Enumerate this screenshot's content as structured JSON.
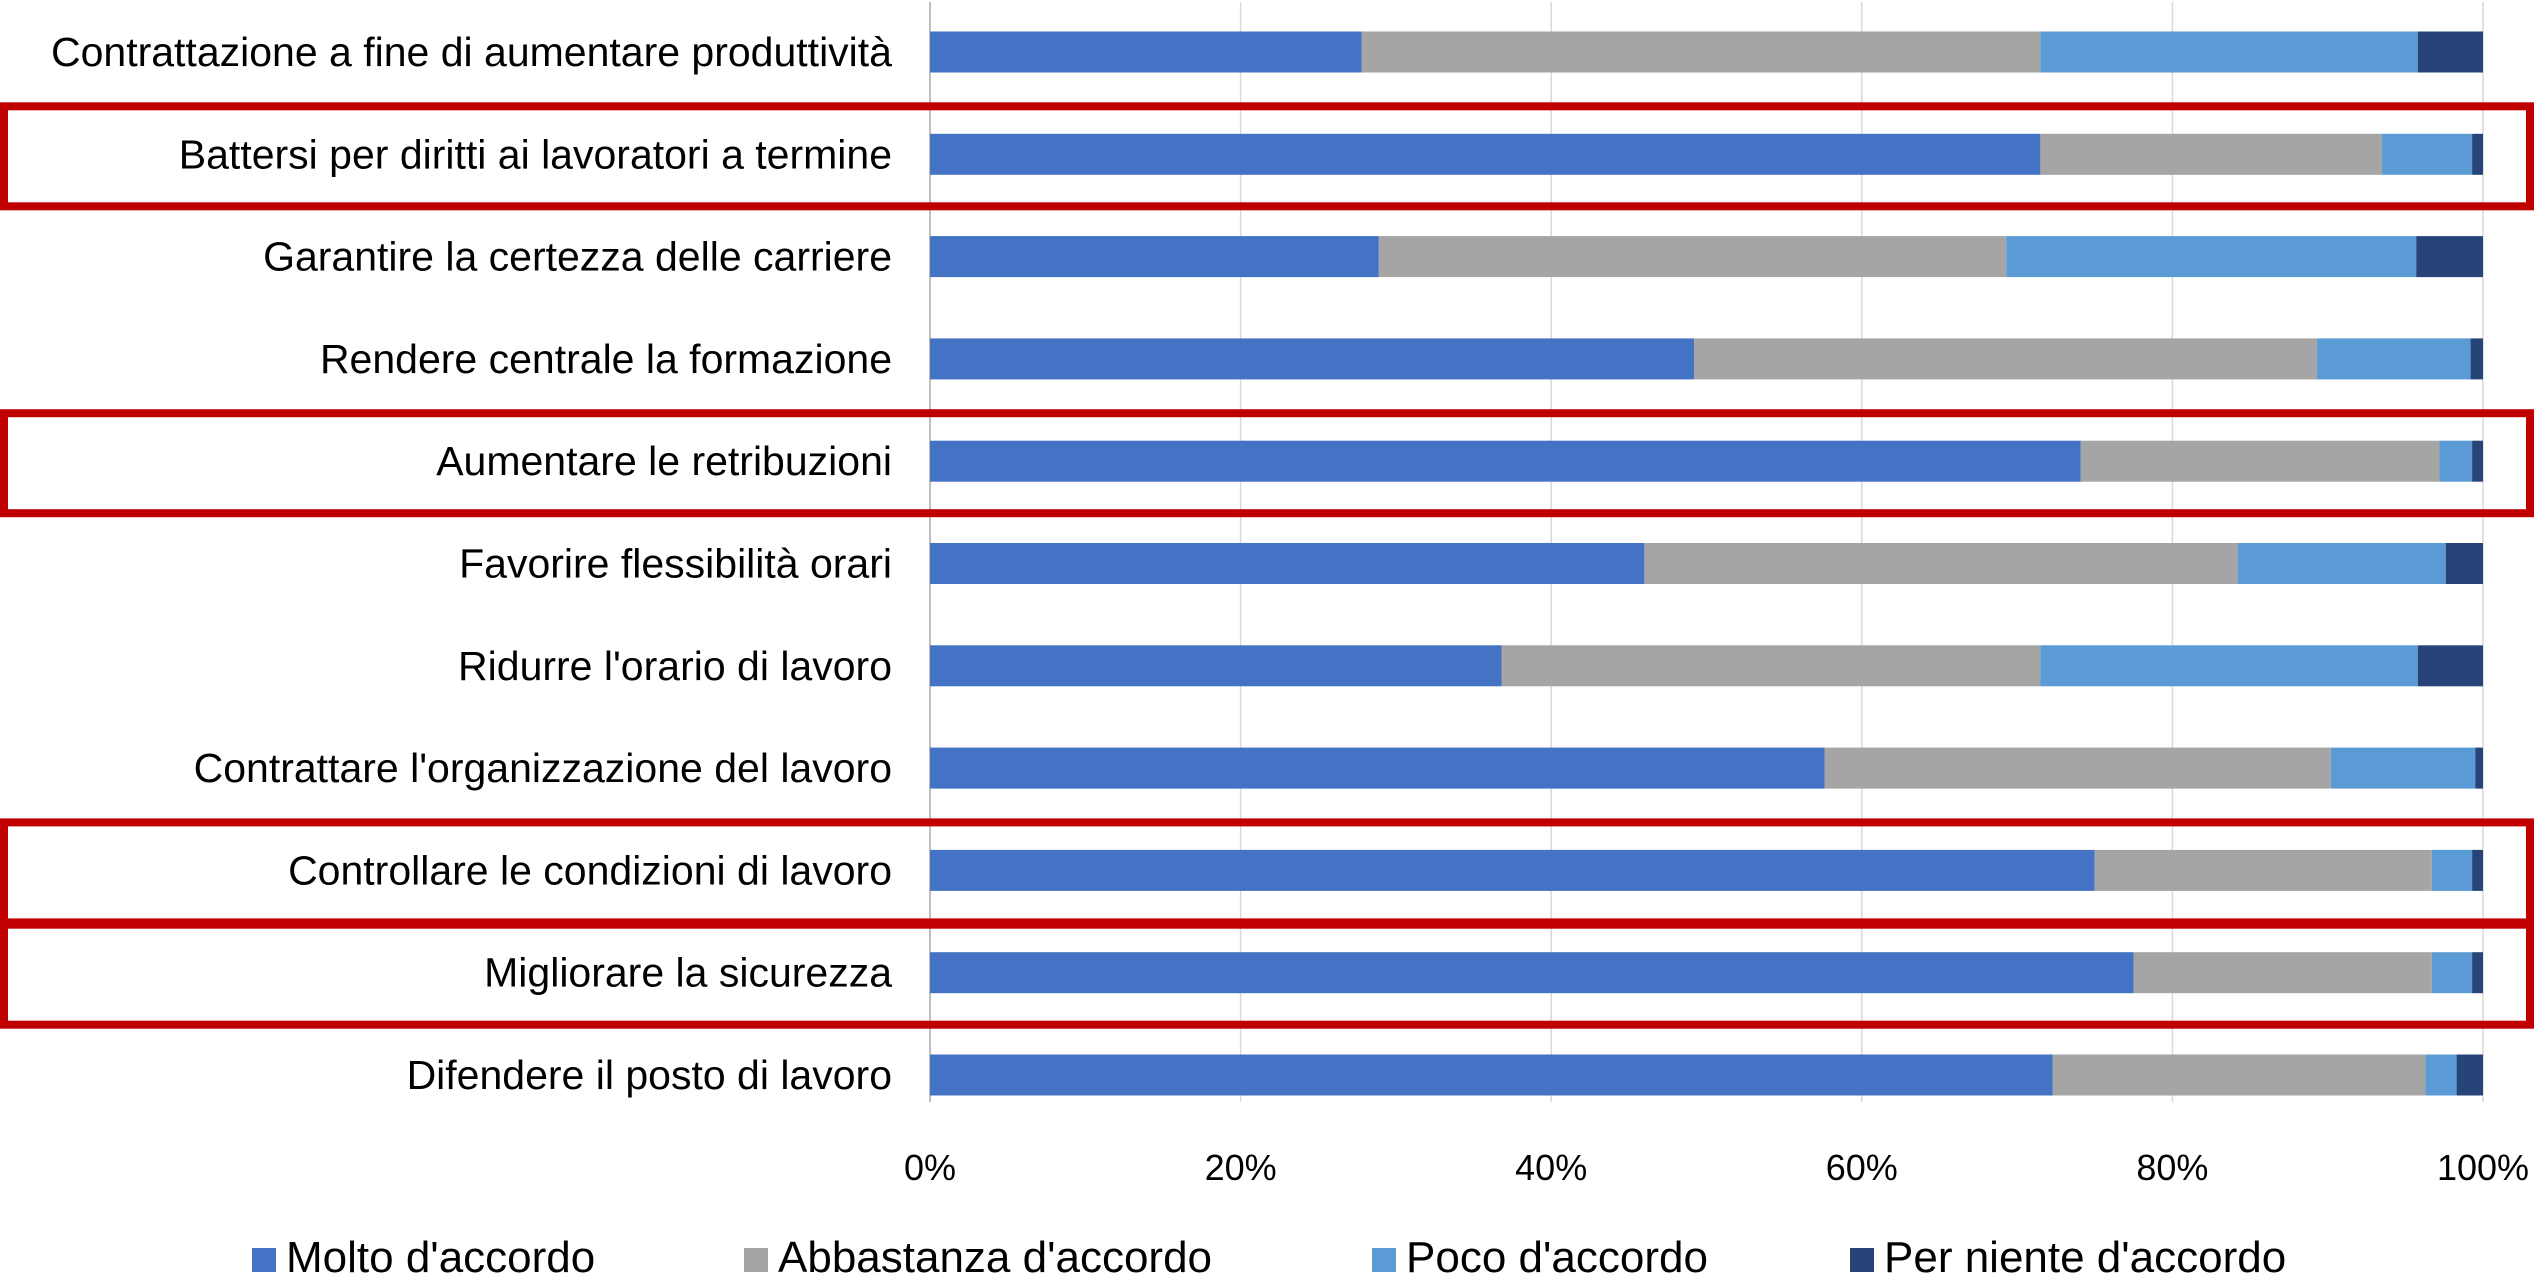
{
  "chart_data": {
    "type": "bar",
    "orientation": "horizontal",
    "stacked": "percent",
    "categories": [
      "Contrattazione a fine di aumentare produttività",
      "Battersi per diritti ai lavoratori a termine",
      "Garantire la certezza delle carriere",
      "Rendere centrale la formazione",
      "Aumentare le retribuzioni",
      "Favorire flessibilità orari",
      "Ridurre l'orario di lavoro",
      "Contrattare l'organizzazione del lavoro",
      "Controllare le condizioni di lavoro",
      "Migliorare la sicurezza",
      "Difendere il posto di lavoro"
    ],
    "series": [
      {
        "name": "Molto d'accordo",
        "color": "#4472C4",
        "values": [
          27.8,
          71.5,
          28.9,
          49.2,
          74.1,
          46.0,
          36.8,
          57.6,
          75.0,
          77.5,
          72.3
        ]
      },
      {
        "name": "Abbastanza d'accordo",
        "color": "#A5A5A5",
        "values": [
          43.7,
          22.0,
          40.4,
          40.1,
          23.1,
          38.2,
          34.7,
          32.6,
          21.7,
          19.2,
          24.0
        ]
      },
      {
        "name": "Poco d'accordo",
        "color": "#5B9BD5",
        "values": [
          24.3,
          5.8,
          26.4,
          9.9,
          2.1,
          13.4,
          24.3,
          9.3,
          2.6,
          2.6,
          2.0
        ]
      },
      {
        "name": "Per niente d'accordo",
        "color": "#264478",
        "values": [
          4.2,
          0.7,
          4.3,
          0.8,
          0.7,
          2.4,
          4.2,
          0.5,
          0.7,
          0.7,
          1.7
        ]
      }
    ],
    "xlim": [
      0,
      100
    ],
    "xticks": [
      "0%",
      "20%",
      "40%",
      "60%",
      "80%",
      "100%"
    ],
    "grid": true,
    "legend_position": "bottom",
    "highlighted_categories": [
      "Battersi per diritti ai lavoratori a termine",
      "Aumentare le retribuzioni",
      "Controllare le condizioni di lavoro",
      "Migliorare la sicurezza"
    ],
    "highlight_color": "#C00000",
    "gridline_color": "#D9D9D9",
    "axis_color": "#BFBFBF"
  }
}
